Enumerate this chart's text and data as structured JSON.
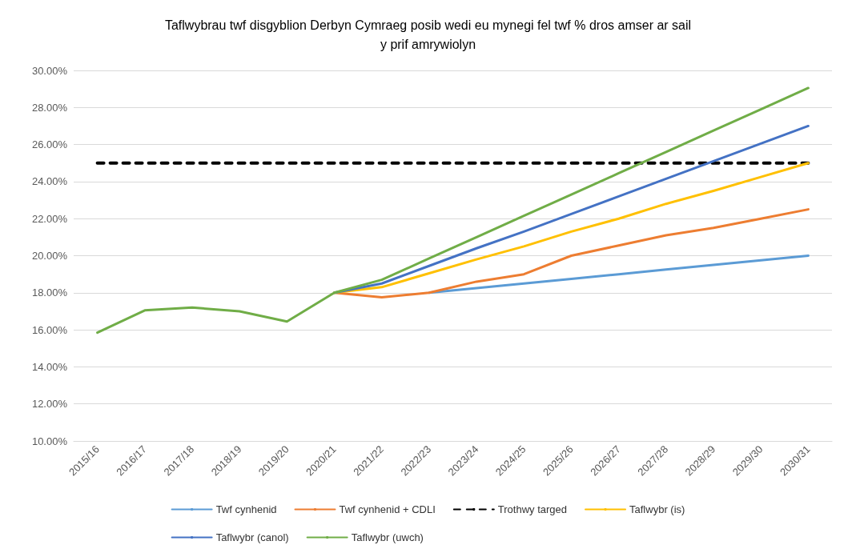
{
  "chart_data": {
    "type": "line",
    "title": "Taflwybrau twf disgyblion Derbyn Cymraeg posib wedi eu mynegi fel twf % dros amser ar sail\ny prif amrywiolyn",
    "categories": [
      "2015/16",
      "2016/17",
      "2017/18",
      "2018/19",
      "2019/20",
      "2020/21",
      "2021/22",
      "2022/23",
      "2023/24",
      "2024/25",
      "2025/26",
      "2026/27",
      "2027/28",
      "2028/29",
      "2029/30",
      "2030/31"
    ],
    "series": [
      {
        "name": "Twf cynhenid",
        "color": "#5b9bd5",
        "values": [
          null,
          null,
          null,
          null,
          null,
          null,
          null,
          18.0,
          18.25,
          18.5,
          18.75,
          19.0,
          19.25,
          19.5,
          19.75,
          20.0
        ]
      },
      {
        "name": "Twf cynhenid + CDLI",
        "color": "#ed7d31",
        "values": [
          null,
          null,
          null,
          null,
          null,
          18.0,
          17.75,
          18.0,
          18.6,
          19.0,
          20.0,
          20.55,
          21.1,
          21.5,
          22.0,
          22.5
        ]
      },
      {
        "name": "Trothwy targed",
        "color": "#000000",
        "line_style": "dashed",
        "values": [
          25,
          25,
          25,
          25,
          25,
          25,
          25,
          25,
          25,
          25,
          25,
          25,
          25,
          25,
          25,
          25
        ]
      },
      {
        "name": "Taflwybr (is)",
        "color": "#ffc000",
        "values": [
          null,
          null,
          null,
          null,
          null,
          18.0,
          18.3,
          19.05,
          19.8,
          20.5,
          21.3,
          22.0,
          22.8,
          23.5,
          24.25,
          25.0
        ]
      },
      {
        "name": "Taflwybr (canol)",
        "color": "#4472c4",
        "values": [
          null,
          null,
          null,
          null,
          null,
          18.0,
          18.5,
          19.45,
          20.4,
          21.3,
          22.25,
          23.2,
          24.15,
          25.1,
          26.05,
          27.0
        ]
      },
      {
        "name": "Taflwybr (uwch)",
        "color": "#70ad47",
        "values": [
          15.85,
          17.05,
          17.2,
          17.0,
          16.45,
          18.0,
          18.7,
          19.85,
          21.0,
          22.15,
          23.3,
          24.45,
          25.6,
          26.75,
          27.9,
          29.05
        ]
      }
    ],
    "ylim": [
      10,
      30
    ],
    "yticks": [
      {
        "value": 10,
        "label": "10.00%"
      },
      {
        "value": 12,
        "label": "12.00%"
      },
      {
        "value": 14,
        "label": "14.00%"
      },
      {
        "value": 16,
        "label": "16.00%"
      },
      {
        "value": 18,
        "label": "18.00%"
      },
      {
        "value": 20,
        "label": "20.00%"
      },
      {
        "value": 22,
        "label": "22.00%"
      },
      {
        "value": 24,
        "label": "24.00%"
      },
      {
        "value": 26,
        "label": "26.00%"
      },
      {
        "value": 28,
        "label": "28.00%"
      },
      {
        "value": 30,
        "label": "30.00%"
      }
    ],
    "grid": "y",
    "legend": "bottom",
    "marker": "none"
  }
}
